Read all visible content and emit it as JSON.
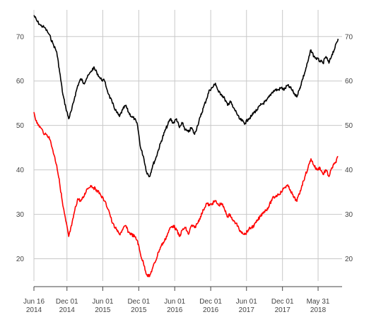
{
  "chart_data": {
    "type": "line",
    "title": "",
    "xlabel": "",
    "ylabel": "",
    "ylim": [
      15,
      76
    ],
    "xlim": [
      "2014-06-16",
      "2018-09-30"
    ],
    "grid": true,
    "legend": "none",
    "y_ticks": [
      {
        "value": 20,
        "label": "20"
      },
      {
        "value": 30,
        "label": "30"
      },
      {
        "value": 40,
        "label": "40"
      },
      {
        "value": 50,
        "label": "50"
      },
      {
        "value": 60,
        "label": "60"
      },
      {
        "value": 70,
        "label": "70"
      }
    ],
    "x_ticks": [
      {
        "date": "2014-06-16",
        "line1": "Jun 16",
        "line2": "2014"
      },
      {
        "date": "2014-12-01",
        "line1": "Dec 01",
        "line2": "2014"
      },
      {
        "date": "2015-06-01",
        "line1": "Jun 01",
        "line2": "2015"
      },
      {
        "date": "2015-12-01",
        "line1": "Dec 01",
        "line2": "2015"
      },
      {
        "date": "2016-06-01",
        "line1": "Jun 01",
        "line2": "2016"
      },
      {
        "date": "2016-12-01",
        "line1": "Dec 01",
        "line2": "2016"
      },
      {
        "date": "2017-06-01",
        "line1": "Jun 01",
        "line2": "2017"
      },
      {
        "date": "2017-12-01",
        "line1": "Dec 01",
        "line2": "2017"
      },
      {
        "date": "2018-05-31",
        "line1": "May 31",
        "line2": "2018"
      }
    ],
    "series": [
      {
        "color": "#000000",
        "points": [
          [
            "2014-06-16",
            74.8
          ],
          [
            "2014-07-01",
            73.5
          ],
          [
            "2014-07-20",
            72.5
          ],
          [
            "2014-08-10",
            72.0
          ],
          [
            "2014-09-01",
            70.5
          ],
          [
            "2014-09-20",
            68.5
          ],
          [
            "2014-10-10",
            66.5
          ],
          [
            "2014-10-25",
            62.0
          ],
          [
            "2014-11-10",
            57.0
          ],
          [
            "2014-11-25",
            54.0
          ],
          [
            "2014-12-10",
            51.5
          ],
          [
            "2014-12-25",
            53.5
          ],
          [
            "2015-01-10",
            56.5
          ],
          [
            "2015-01-25",
            59.0
          ],
          [
            "2015-02-10",
            60.5
          ],
          [
            "2015-02-25",
            59.5
          ],
          [
            "2015-03-10",
            60.5
          ],
          [
            "2015-04-01",
            62.0
          ],
          [
            "2015-04-15",
            63.0
          ],
          [
            "2015-05-01",
            62.0
          ],
          [
            "2015-05-20",
            60.5
          ],
          [
            "2015-06-10",
            60.0
          ],
          [
            "2015-07-01",
            57.0
          ],
          [
            "2015-07-20",
            55.0
          ],
          [
            "2015-08-10",
            53.0
          ],
          [
            "2015-08-25",
            52.0
          ],
          [
            "2015-09-10",
            53.5
          ],
          [
            "2015-09-25",
            54.5
          ],
          [
            "2015-10-10",
            53.0
          ],
          [
            "2015-10-25",
            52.0
          ],
          [
            "2015-11-10",
            51.5
          ],
          [
            "2015-11-25",
            50.0
          ],
          [
            "2015-12-10",
            45.0
          ],
          [
            "2015-12-25",
            43.0
          ],
          [
            "2016-01-10",
            39.5
          ],
          [
            "2016-01-25",
            38.5
          ],
          [
            "2016-02-10",
            41.0
          ],
          [
            "2016-02-25",
            42.5
          ],
          [
            "2016-03-10",
            44.5
          ],
          [
            "2016-03-25",
            46.5
          ],
          [
            "2016-04-10",
            48.5
          ],
          [
            "2016-04-25",
            50.0
          ],
          [
            "2016-05-10",
            51.5
          ],
          [
            "2016-05-25",
            50.5
          ],
          [
            "2016-06-10",
            51.5
          ],
          [
            "2016-06-25",
            49.5
          ],
          [
            "2016-07-10",
            50.5
          ],
          [
            "2016-07-25",
            49.0
          ],
          [
            "2016-08-10",
            48.5
          ],
          [
            "2016-08-25",
            49.5
          ],
          [
            "2016-09-10",
            48.0
          ],
          [
            "2016-09-25",
            50.0
          ],
          [
            "2016-10-10",
            52.0
          ],
          [
            "2016-10-25",
            54.0
          ],
          [
            "2016-11-10",
            56.0
          ],
          [
            "2016-11-25",
            58.0
          ],
          [
            "2016-12-10",
            58.5
          ],
          [
            "2016-12-25",
            59.5
          ],
          [
            "2017-01-10",
            57.5
          ],
          [
            "2017-01-25",
            57.0
          ],
          [
            "2017-02-10",
            56.0
          ],
          [
            "2017-02-25",
            54.5
          ],
          [
            "2017-03-10",
            55.5
          ],
          [
            "2017-03-25",
            54.0
          ],
          [
            "2017-04-10",
            53.0
          ],
          [
            "2017-04-25",
            51.5
          ],
          [
            "2017-05-10",
            51.0
          ],
          [
            "2017-05-25",
            50.5
          ],
          [
            "2017-06-10",
            51.5
          ],
          [
            "2017-06-25",
            52.0
          ],
          [
            "2017-07-10",
            53.0
          ],
          [
            "2017-07-25",
            53.5
          ],
          [
            "2017-08-10",
            54.5
          ],
          [
            "2017-08-25",
            55.0
          ],
          [
            "2017-09-10",
            55.5
          ],
          [
            "2017-09-25",
            56.5
          ],
          [
            "2017-10-10",
            57.5
          ],
          [
            "2017-10-25",
            58.0
          ],
          [
            "2017-11-10",
            58.0
          ],
          [
            "2017-11-25",
            58.5
          ],
          [
            "2017-12-10",
            58.0
          ],
          [
            "2017-12-25",
            59.0
          ],
          [
            "2018-01-10",
            58.5
          ],
          [
            "2018-01-25",
            57.5
          ],
          [
            "2018-02-10",
            56.5
          ],
          [
            "2018-02-25",
            58.0
          ],
          [
            "2018-03-10",
            60.0
          ],
          [
            "2018-03-25",
            62.0
          ],
          [
            "2018-04-10",
            64.5
          ],
          [
            "2018-04-25",
            67.0
          ],
          [
            "2018-05-10",
            65.5
          ],
          [
            "2018-05-25",
            65.0
          ],
          [
            "2018-06-10",
            64.5
          ],
          [
            "2018-06-25",
            64.0
          ],
          [
            "2018-07-10",
            65.5
          ],
          [
            "2018-07-25",
            64.0
          ],
          [
            "2018-08-10",
            66.0
          ],
          [
            "2018-08-25",
            67.5
          ],
          [
            "2018-09-10",
            69.5
          ]
        ]
      },
      {
        "color": "#ff0000",
        "points": [
          [
            "2014-06-16",
            53.0
          ],
          [
            "2014-07-01",
            50.5
          ],
          [
            "2014-07-20",
            49.5
          ],
          [
            "2014-08-10",
            48.0
          ],
          [
            "2014-09-01",
            47.5
          ],
          [
            "2014-09-20",
            44.5
          ],
          [
            "2014-10-10",
            41.0
          ],
          [
            "2014-10-25",
            37.0
          ],
          [
            "2014-11-10",
            32.0
          ],
          [
            "2014-11-25",
            28.5
          ],
          [
            "2014-12-10",
            25.0
          ],
          [
            "2014-12-25",
            27.5
          ],
          [
            "2015-01-10",
            31.0
          ],
          [
            "2015-01-25",
            33.5
          ],
          [
            "2015-02-10",
            33.0
          ],
          [
            "2015-02-25",
            34.0
          ],
          [
            "2015-03-10",
            35.5
          ],
          [
            "2015-04-01",
            36.5
          ],
          [
            "2015-04-15",
            36.0
          ],
          [
            "2015-05-01",
            35.5
          ],
          [
            "2015-05-20",
            34.5
          ],
          [
            "2015-06-10",
            33.0
          ],
          [
            "2015-07-01",
            31.0
          ],
          [
            "2015-07-20",
            28.0
          ],
          [
            "2015-08-10",
            26.5
          ],
          [
            "2015-08-25",
            25.5
          ],
          [
            "2015-09-10",
            26.5
          ],
          [
            "2015-09-25",
            27.5
          ],
          [
            "2015-10-10",
            26.0
          ],
          [
            "2015-10-25",
            25.5
          ],
          [
            "2015-11-10",
            25.0
          ],
          [
            "2015-11-25",
            24.0
          ],
          [
            "2015-12-10",
            21.0
          ],
          [
            "2015-12-25",
            19.0
          ],
          [
            "2016-01-10",
            16.5
          ],
          [
            "2016-01-25",
            16.0
          ],
          [
            "2016-02-10",
            18.0
          ],
          [
            "2016-02-25",
            19.5
          ],
          [
            "2016-03-10",
            21.5
          ],
          [
            "2016-03-25",
            23.0
          ],
          [
            "2016-04-10",
            24.0
          ],
          [
            "2016-04-25",
            25.5
          ],
          [
            "2016-05-10",
            27.0
          ],
          [
            "2016-05-25",
            27.5
          ],
          [
            "2016-06-10",
            26.5
          ],
          [
            "2016-06-25",
            25.0
          ],
          [
            "2016-07-10",
            26.5
          ],
          [
            "2016-07-25",
            27.0
          ],
          [
            "2016-08-10",
            25.5
          ],
          [
            "2016-08-25",
            27.5
          ],
          [
            "2016-09-10",
            27.0
          ],
          [
            "2016-09-25",
            28.0
          ],
          [
            "2016-10-10",
            29.5
          ],
          [
            "2016-10-25",
            31.0
          ],
          [
            "2016-11-10",
            32.5
          ],
          [
            "2016-11-25",
            32.0
          ],
          [
            "2016-12-10",
            32.5
          ],
          [
            "2016-12-25",
            33.0
          ],
          [
            "2017-01-10",
            32.0
          ],
          [
            "2017-01-25",
            32.5
          ],
          [
            "2017-02-10",
            31.0
          ],
          [
            "2017-02-25",
            29.5
          ],
          [
            "2017-03-10",
            30.0
          ],
          [
            "2017-03-25",
            28.5
          ],
          [
            "2017-04-10",
            28.0
          ],
          [
            "2017-04-25",
            26.5
          ],
          [
            "2017-05-10",
            26.0
          ],
          [
            "2017-05-25",
            25.5
          ],
          [
            "2017-06-10",
            26.5
          ],
          [
            "2017-06-25",
            27.0
          ],
          [
            "2017-07-10",
            27.5
          ],
          [
            "2017-07-25",
            28.5
          ],
          [
            "2017-08-10",
            29.5
          ],
          [
            "2017-08-25",
            30.5
          ],
          [
            "2017-09-10",
            31.0
          ],
          [
            "2017-09-25",
            32.0
          ],
          [
            "2017-10-10",
            33.5
          ],
          [
            "2017-10-25",
            34.0
          ],
          [
            "2017-11-10",
            34.5
          ],
          [
            "2017-11-25",
            35.0
          ],
          [
            "2017-12-10",
            36.0
          ],
          [
            "2017-12-25",
            36.5
          ],
          [
            "2018-01-10",
            35.5
          ],
          [
            "2018-01-25",
            34.0
          ],
          [
            "2018-02-10",
            33.0
          ],
          [
            "2018-02-25",
            34.5
          ],
          [
            "2018-03-10",
            36.5
          ],
          [
            "2018-03-25",
            38.5
          ],
          [
            "2018-04-10",
            40.5
          ],
          [
            "2018-04-25",
            42.5
          ],
          [
            "2018-05-10",
            41.0
          ],
          [
            "2018-05-25",
            40.0
          ],
          [
            "2018-06-10",
            40.5
          ],
          [
            "2018-06-25",
            39.0
          ],
          [
            "2018-07-10",
            40.0
          ],
          [
            "2018-07-25",
            38.5
          ],
          [
            "2018-08-10",
            40.5
          ],
          [
            "2018-08-25",
            41.5
          ],
          [
            "2018-09-10",
            43.0
          ]
        ]
      }
    ]
  }
}
